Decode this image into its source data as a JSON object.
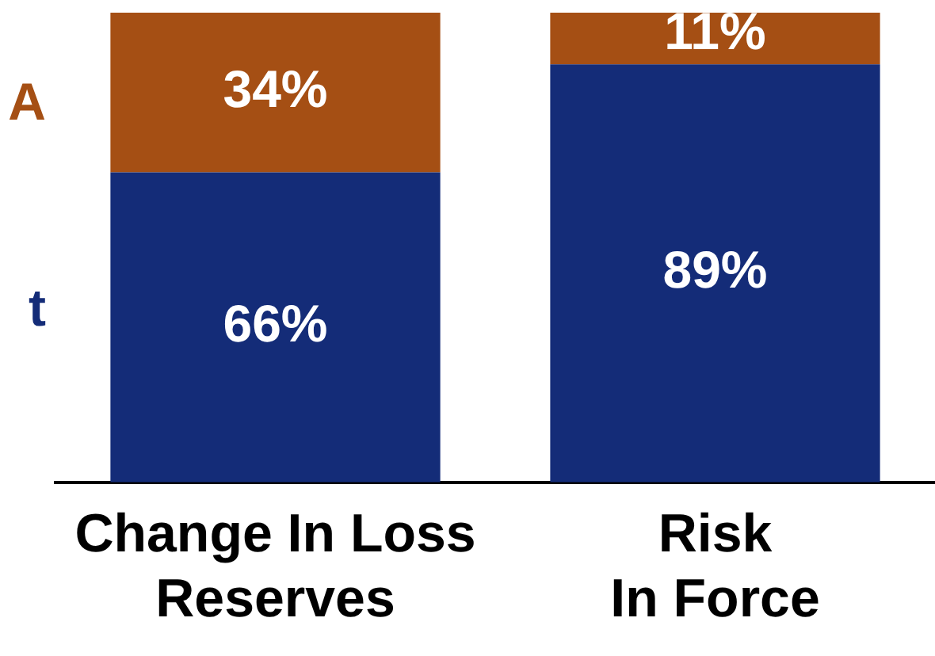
{
  "chart_data": {
    "type": "bar",
    "stacked": true,
    "categories": [
      "Change In Loss\nReserves",
      "Risk\nIn Force"
    ],
    "series": [
      {
        "name": "t",
        "color": "#142c78",
        "values": [
          66,
          89
        ],
        "value_labels": [
          "66%",
          "89%"
        ]
      },
      {
        "name": "A",
        "color": "#a54f14",
        "values": [
          34,
          11
        ],
        "value_labels": [
          "34%",
          "11%"
        ]
      }
    ],
    "legend": false,
    "grid": false
  }
}
